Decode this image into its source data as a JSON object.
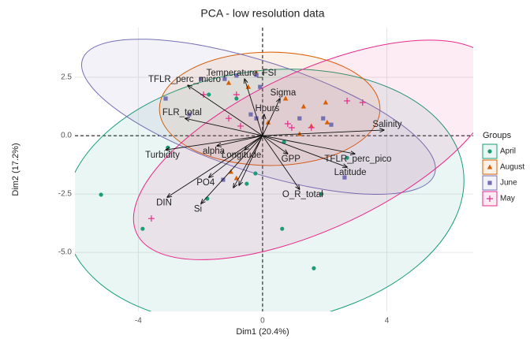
{
  "chart_data": {
    "type": "scatter",
    "title": "PCA - low resolution data",
    "x_label": "Dim1 (20.4%)",
    "y_label": "Dim2 (17.2%)",
    "xlim": [
      -6.04,
      6.78
    ],
    "ylim": [
      -7.53,
      4.63
    ],
    "xticks": [
      -4,
      0,
      4
    ],
    "yticks": [
      2.5,
      {
        "value": 0,
        "label": "0.0"
      },
      -2.5,
      {
        "value": -5,
        "label": "-5.0"
      }
    ],
    "grid": true,
    "legend_title": "Groups",
    "legend_position": "right",
    "series": [
      {
        "name": "April",
        "color": "#1b9e77",
        "shape": "circle",
        "x": [
          -5.2,
          -3.86,
          -3.05,
          -1.78,
          -0.51,
          -0.23,
          0.63,
          1.65,
          1.9,
          2.72,
          -1.73,
          -0.84,
          0.69
        ],
        "y": [
          -2.53,
          -3.99,
          -0.51,
          -2.7,
          -2.06,
          -1.62,
          -3.99,
          -5.68,
          -2.5,
          -0.95,
          1.76,
          1.59,
          -0.27
        ],
        "ellipse": {
          "center": [
            0.05,
            -2.64
          ],
          "radii": [
            6.47,
            5.41
          ],
          "angle": -8
        }
      },
      {
        "name": "August",
        "color": "#d95f02",
        "shape": "triangle",
        "x": [
          -1.02,
          -0.84,
          -0.46,
          -0.2,
          0.74,
          1.32,
          2.03,
          2.08,
          1.57,
          1.19,
          0.18,
          -1.09
        ],
        "y": [
          -1.55,
          -1.82,
          2.09,
          2.7,
          1.59,
          1.25,
          1.42,
          0.57,
          0.41,
          0.07,
          0.57,
          2.26
        ],
        "ellipse": {
          "center": [
            0.23,
            1.15
          ],
          "radii": [
            3.55,
            2.43
          ],
          "angle": 0
        }
      },
      {
        "name": "June",
        "color": "#7570b3",
        "shape": "square",
        "x": [
          -3.12,
          -2.36,
          -1.98,
          -1.22,
          -0.84,
          -0.2,
          -0.08,
          -0.38,
          -0.2,
          1.19,
          1.95,
          2.21,
          2.64,
          -1.27
        ],
        "y": [
          1.59,
          0.91,
          2.43,
          2.43,
          2.57,
          2.6,
          2.09,
          0.91,
          0.74,
          0.74,
          0.74,
          0.47,
          -1.79,
          -1.89
        ],
        "ellipse": {
          "center": [
            -0.13,
            0.81
          ],
          "radii": [
            5.96,
            2.36
          ],
          "angle": 18
        }
      },
      {
        "name": "May",
        "color": "#e7298a",
        "shape": "plus",
        "x": [
          -3.58,
          -1.9,
          -1.09,
          -0.71,
          0.81,
          0.94,
          1.57,
          2.72,
          3.22,
          -0.84
        ],
        "y": [
          -3.55,
          1.76,
          0.74,
          0.41,
          0.51,
          0.34,
          0.34,
          1.49,
          1.42,
          1.76
        ],
        "ellipse": {
          "center": [
            1.7,
            -0.61
          ],
          "radii": [
            6.35,
            3.38
          ],
          "angle": -25
        }
      }
    ],
    "variables": {
      "names": [
        "TFLR_perc_micro",
        "Temperature_FSI",
        "Sigma",
        "FLR_total",
        "Hours",
        "Salinity",
        "Turbidity",
        "alpha",
        "Longitude",
        "GPP",
        "TFLR_perc_pico",
        "Latitude",
        "PO4",
        "O_R_total",
        "DIN",
        "Si",
        null,
        null
      ],
      "x": [
        -2.41,
        -0.58,
        0.56,
        -2.49,
        0.05,
        3.91,
        -3.12,
        -1.47,
        -0.58,
        0.81,
        2.97,
        2.72,
        -1.73,
        1.19,
        -3.07,
        -1.98,
        -0.94,
        -0.76
      ],
      "y": [
        2.16,
        2.43,
        1.59,
        0.74,
        0.91,
        0.24,
        -0.61,
        -0.44,
        -0.61,
        -0.78,
        -0.78,
        -1.35,
        -1.79,
        -2.3,
        -2.64,
        -2.91,
        -2.23,
        -2.13
      ]
    }
  }
}
